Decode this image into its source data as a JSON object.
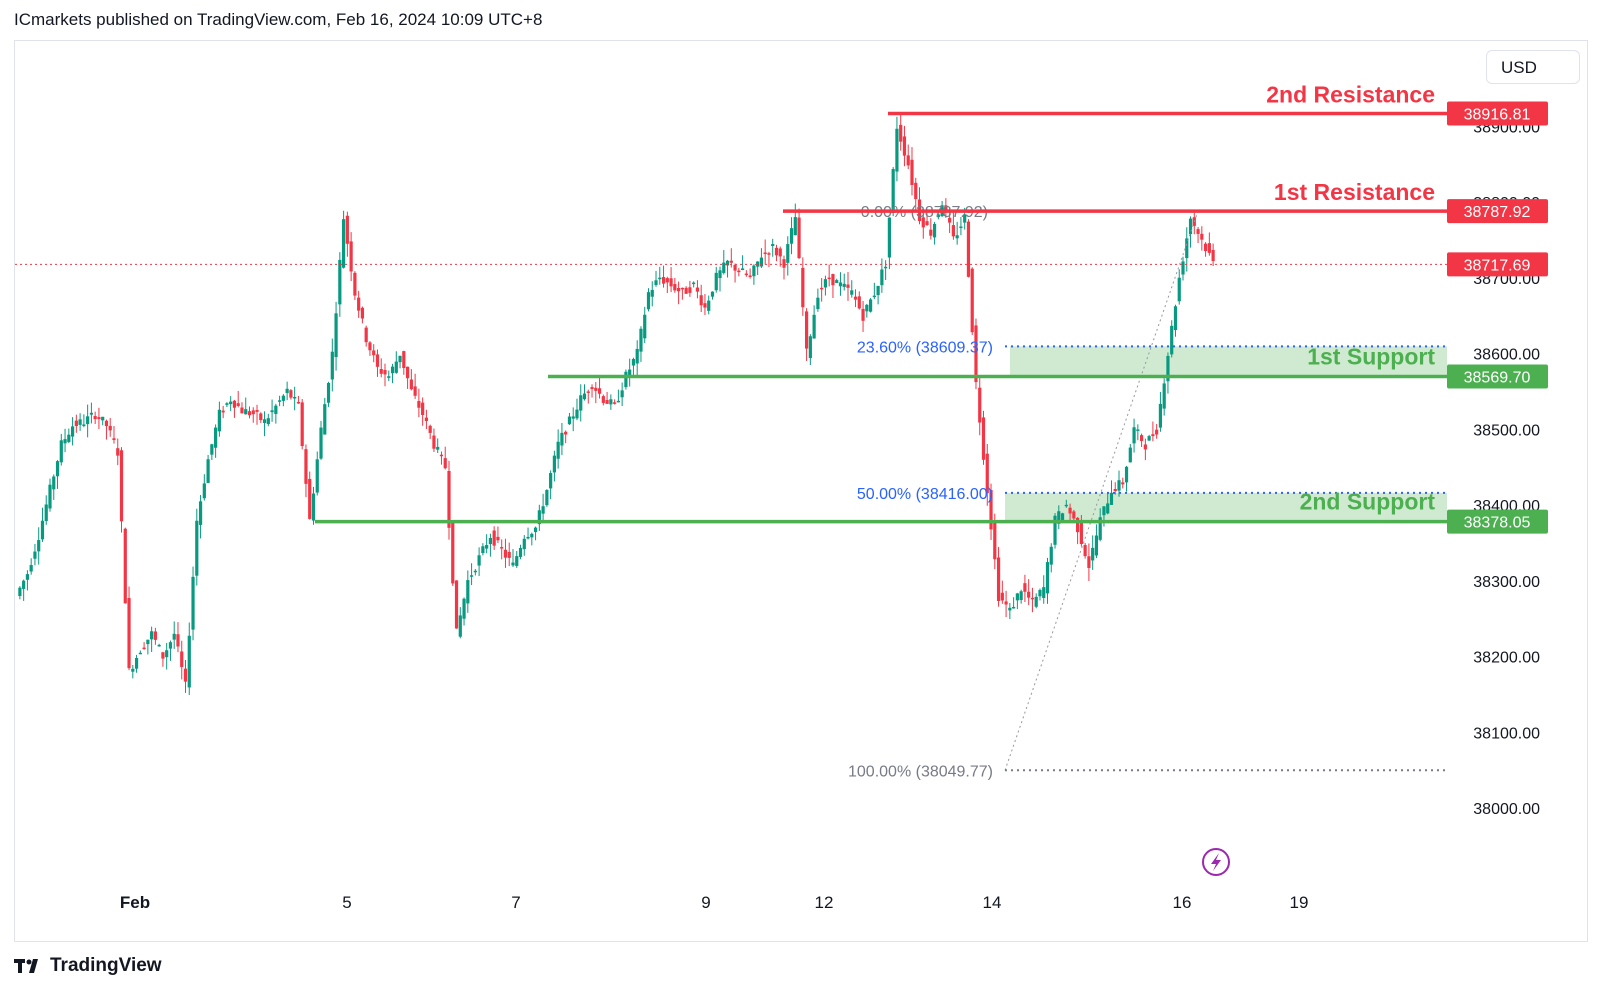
{
  "header": {
    "text": "ICmarkets published on TradingView.com, Feb 16, 2024 10:09 UTC+8"
  },
  "currency": "USD",
  "footer": {
    "brand": "TradingView"
  },
  "colors": {
    "up": "#089981",
    "down": "#f23645",
    "resistance": "#f23645",
    "support": "#4caf50",
    "fib": "#2962ff",
    "fib_gray": "#787b86",
    "support_zone": "#c8e6c9"
  },
  "chart_data": {
    "type": "candlestick",
    "symbol_currency": "USD",
    "y_ticks": [
      38000,
      38100,
      38200,
      38300,
      38400,
      38500,
      38600,
      38700,
      38800,
      38900
    ],
    "x_ticks": [
      "Feb",
      "5",
      "7",
      "9",
      "12",
      "14",
      "16",
      "19"
    ],
    "current_price": 38717.69,
    "levels": [
      {
        "label": "2nd Resistance",
        "value": 38916.81,
        "kind": "resistance"
      },
      {
        "label": "1st Resistance",
        "value": 38787.92,
        "kind": "resistance"
      },
      {
        "label": "1st Support",
        "value": 38569.7,
        "kind": "support"
      },
      {
        "label": "2nd Support",
        "value": 38378.05,
        "kind": "support"
      }
    ],
    "fibonacci": [
      {
        "ratio": "0.00%",
        "value": 38787.92,
        "text": "0.00% (38787.92)"
      },
      {
        "ratio": "23.60%",
        "value": 38609.37,
        "text": "23.60% (38609.37)"
      },
      {
        "ratio": "50.00%",
        "value": 38416.0,
        "text": "50.00% (38416.00)"
      },
      {
        "ratio": "100.00%",
        "value": 38049.77,
        "text": "100.00% (38049.77)"
      }
    ],
    "close_path": [
      38280,
      38310,
      38360,
      38420,
      38480,
      38505,
      38510,
      38520,
      38505,
      38470,
      38180,
      38210,
      38230,
      38200,
      38230,
      38160,
      38380,
      38460,
      38520,
      38540,
      38525,
      38520,
      38510,
      38530,
      38550,
      38530,
      38380,
      38500,
      38600,
      38780,
      38680,
      38620,
      38580,
      38570,
      38600,
      38550,
      38520,
      38480,
      38450,
      38230,
      38300,
      38330,
      38360,
      38340,
      38320,
      38360,
      38370,
      38420,
      38480,
      38510,
      38540,
      38560,
      38540,
      38530,
      38570,
      38600,
      38680,
      38700,
      38690,
      38680,
      38690,
      38660,
      38700,
      38720,
      38710,
      38700,
      38730,
      38740,
      38720,
      38780,
      38600,
      38680,
      38700,
      38690,
      38680,
      38650,
      38680,
      38720,
      38900,
      38850,
      38780,
      38760,
      38800,
      38750,
      38780,
      38560,
      38420,
      38280,
      38260,
      38290,
      38270,
      38290,
      38380,
      38400,
      38370,
      38320,
      38380,
      38420,
      38430,
      38500,
      38480,
      38500,
      38600,
      38700,
      38780,
      38750,
      38720
    ]
  }
}
